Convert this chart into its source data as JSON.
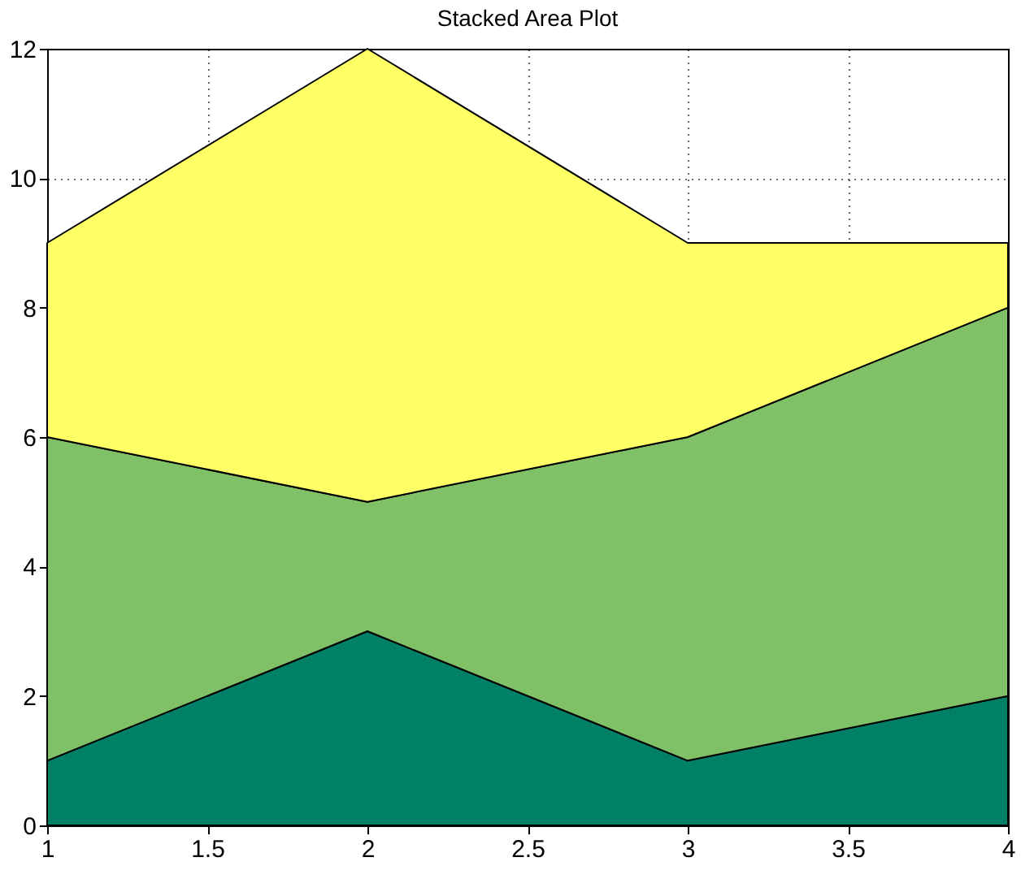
{
  "chart_data": {
    "type": "area",
    "title": "Stacked Area Plot",
    "stacked": true,
    "x": [
      1,
      2,
      3,
      4
    ],
    "series": [
      {
        "color": "#008066",
        "values": [
          1,
          3,
          1,
          2
        ]
      },
      {
        "color": "#80c066",
        "values": [
          5,
          2,
          5,
          6
        ]
      },
      {
        "color": "#ffff66",
        "values": [
          3,
          7,
          3,
          1
        ]
      }
    ],
    "xlim": [
      1,
      4
    ],
    "xticks": [
      1,
      1.5,
      2,
      2.5,
      3,
      3.5,
      4
    ],
    "ylim": [
      0,
      12
    ],
    "yticks": [
      0,
      2,
      4,
      6,
      8,
      10,
      12
    ],
    "grid": true,
    "legend": false
  }
}
